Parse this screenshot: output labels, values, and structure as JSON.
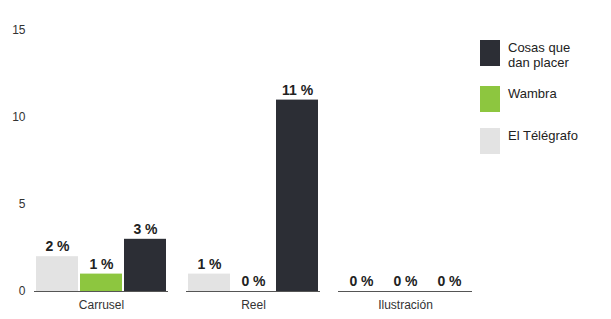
{
  "chart_data": {
    "type": "bar",
    "categories": [
      "Carrusel",
      "Reel",
      "Ilustración"
    ],
    "series": [
      {
        "name": "El Télégrafo",
        "color": "#e3e3e3",
        "values": [
          2,
          1,
          0
        ],
        "value_labels": [
          "2 %",
          "1 %",
          "0 %"
        ]
      },
      {
        "name": "Wambra",
        "color": "#8dc63f",
        "values": [
          1,
          0,
          0
        ],
        "value_labels": [
          "1 %",
          "0 %",
          "0 %"
        ]
      },
      {
        "name": "Cosas que dan placer",
        "color": "#2c2e35",
        "values": [
          3,
          11,
          0
        ],
        "value_labels": [
          "3 %",
          "11 %",
          "0 %"
        ]
      }
    ],
    "ylim": [
      0,
      15
    ],
    "yticks": [
      0,
      5,
      10,
      15
    ],
    "grid": false,
    "legend": "right",
    "data_labels": true
  }
}
